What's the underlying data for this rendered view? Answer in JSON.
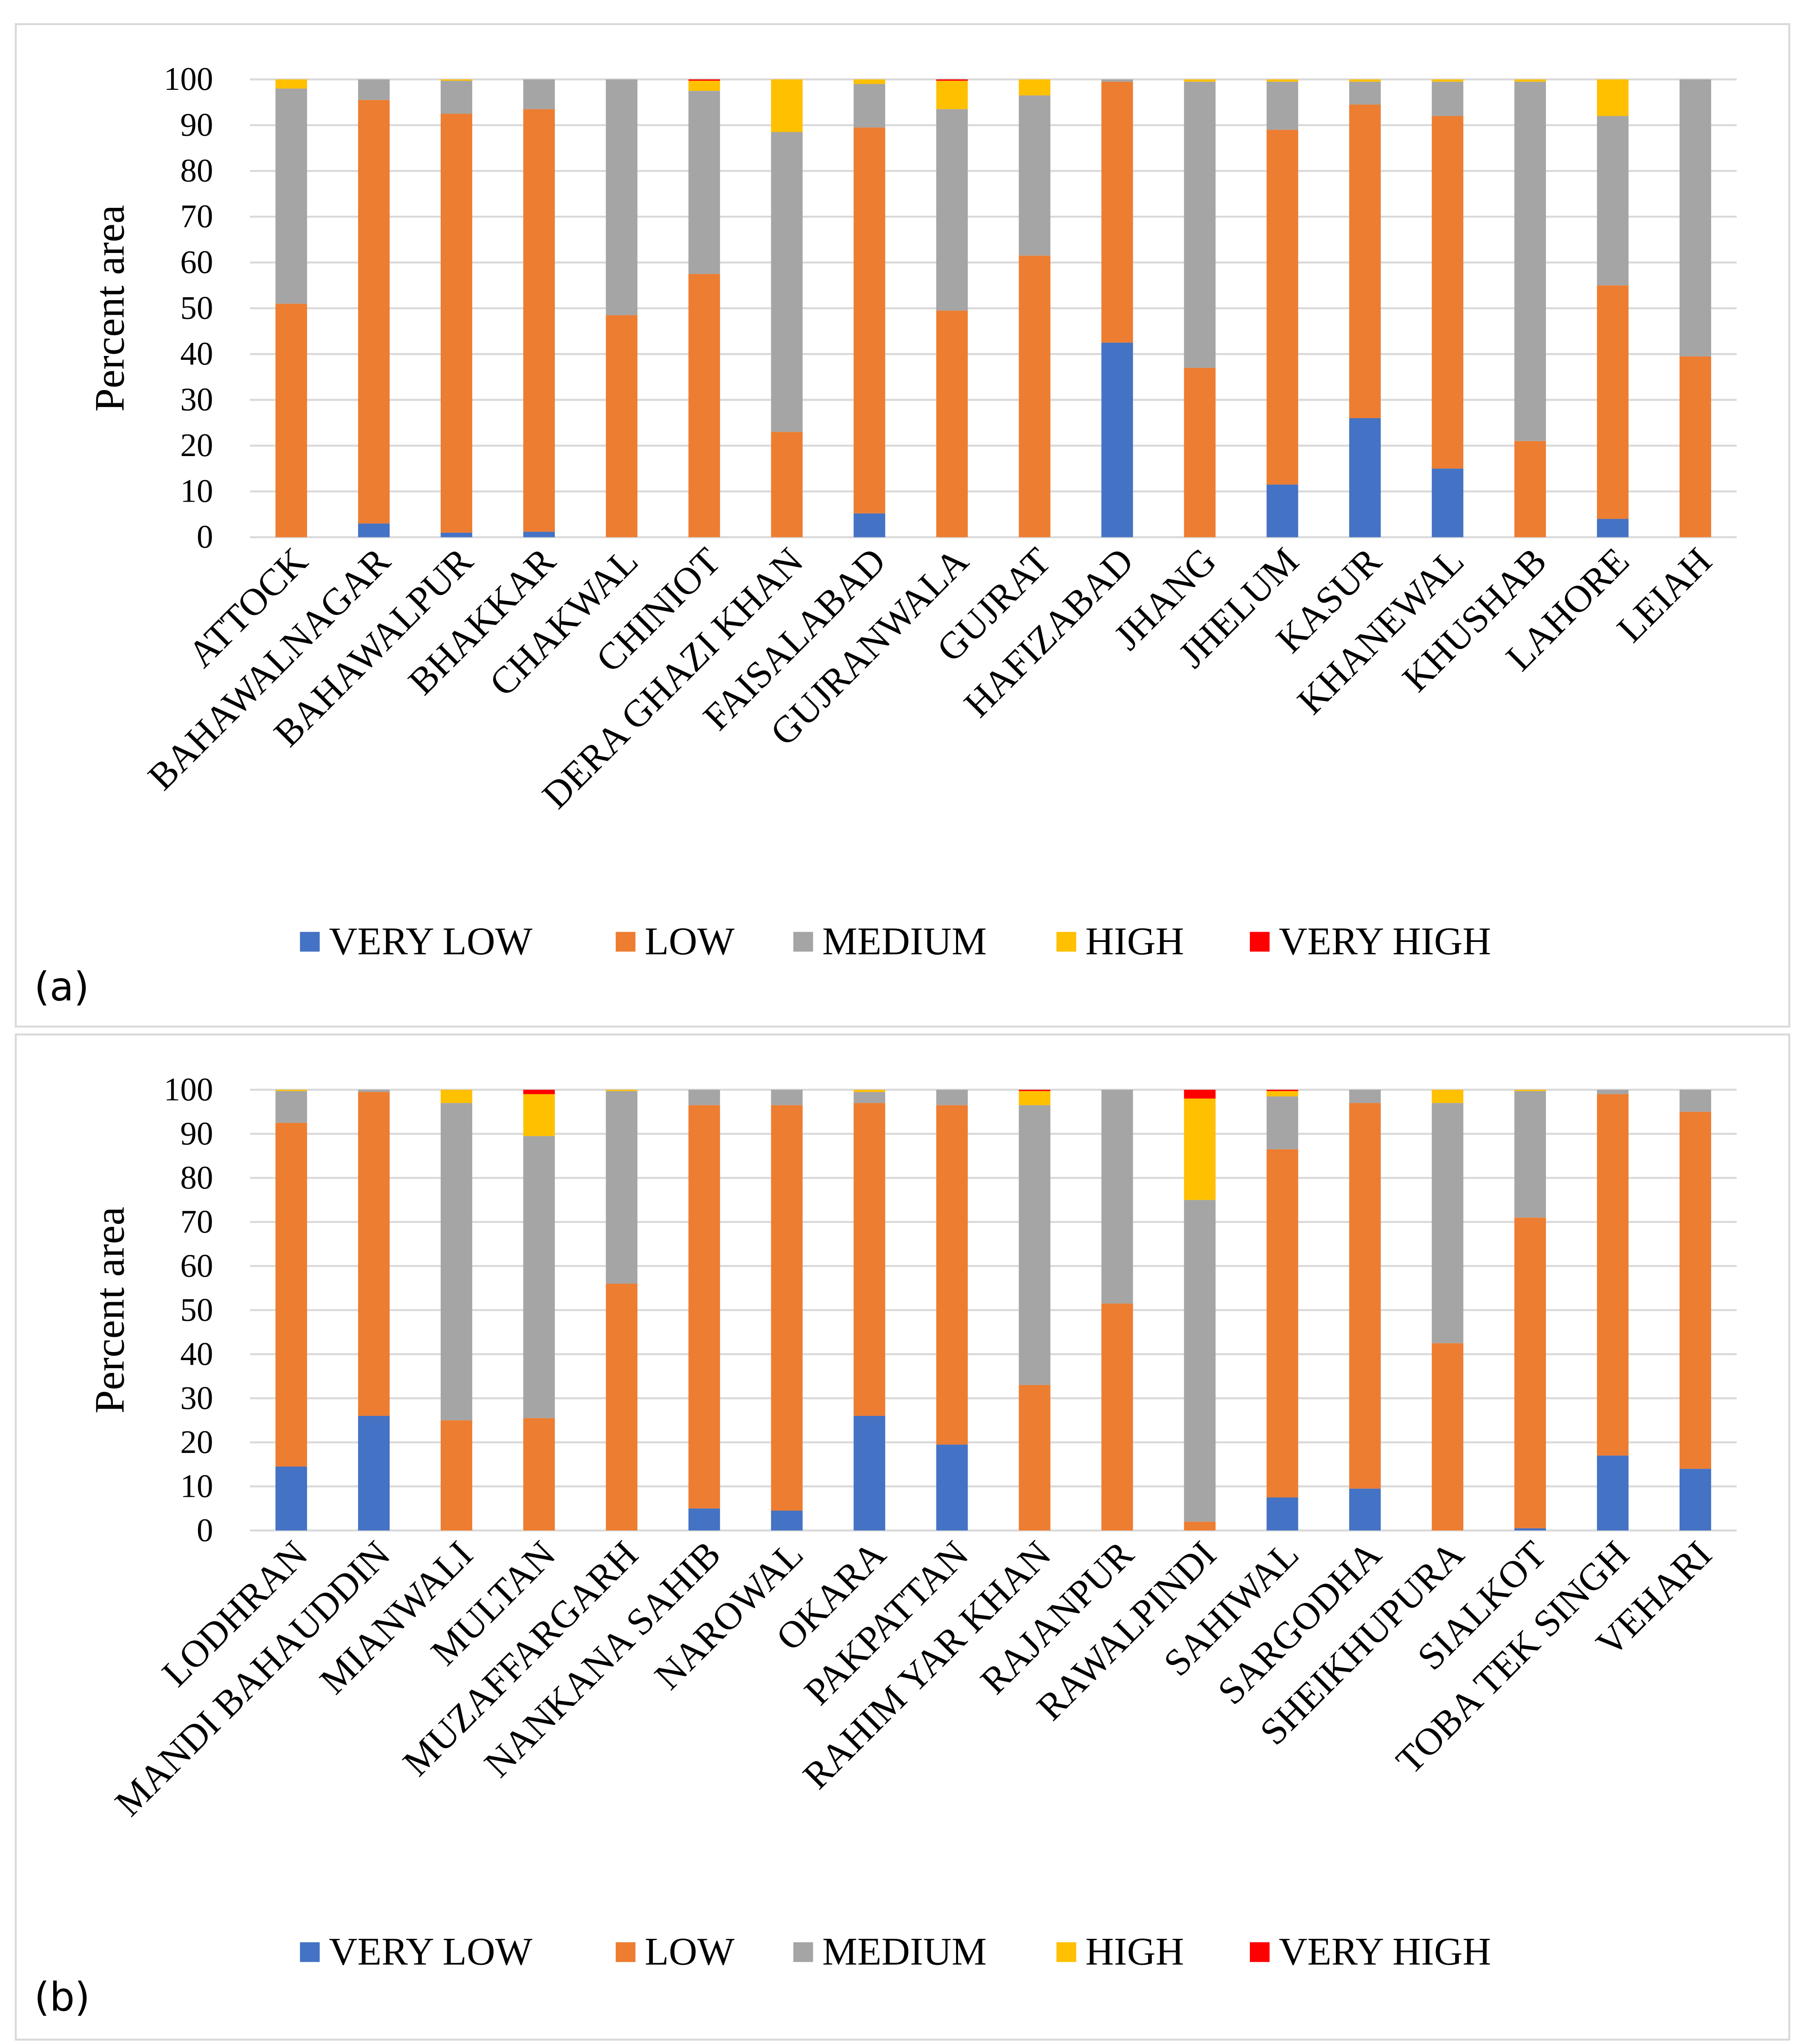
{
  "chart_data": [
    {
      "type": "bar",
      "stacked": true,
      "panel_label": "(a)",
      "title": "",
      "xlabel": "",
      "ylabel": "Percent area",
      "ylim": [
        0,
        100
      ],
      "yticks": [
        0,
        10,
        20,
        30,
        40,
        50,
        60,
        70,
        80,
        90,
        100
      ],
      "grid": true,
      "legend_position": "bottom",
      "categories": [
        "ATTOCK",
        "BAHAWALNAGAR",
        "BAHAWALPUR",
        "BHAKKAR",
        "CHAKWAL",
        "CHINIOT",
        "DERA GHAZI KHAN",
        "FAISALABAD",
        "GUJRANWALA",
        "GUJRAT",
        "HAFIZABAD",
        "JHANG",
        "JHELUM",
        "KASUR",
        "KHANEWAL",
        "KHUSHAB",
        "LAHORE",
        "LEIAH"
      ],
      "series": [
        {
          "name": "VERY LOW",
          "color": "#4472C4",
          "values": [
            0,
            3,
            1,
            1.2,
            0,
            0,
            0,
            5.2,
            0,
            0,
            42.5,
            0,
            11.5,
            26,
            15,
            0,
            4,
            0
          ]
        },
        {
          "name": "LOW",
          "color": "#ED7D31",
          "values": [
            51,
            92.5,
            91.5,
            92.3,
            48.5,
            57.5,
            23,
            84.3,
            49.5,
            61.5,
            57,
            37,
            77.5,
            68.5,
            77,
            21,
            51,
            39.5
          ]
        },
        {
          "name": "MEDIUM",
          "color": "#A5A5A5",
          "values": [
            47,
            4.5,
            7.2,
            6.5,
            51.5,
            40,
            65.5,
            9.5,
            44,
            35,
            0.5,
            62.5,
            10.5,
            5,
            7.5,
            78.5,
            37,
            60.5
          ]
        },
        {
          "name": "HIGH",
          "color": "#FFC000",
          "values": [
            2,
            0,
            0.3,
            0,
            0,
            2.2,
            11.5,
            1,
            6.2,
            3.5,
            0,
            0.5,
            0.5,
            0.5,
            0.5,
            0.5,
            8,
            0
          ]
        },
        {
          "name": "VERY HIGH",
          "color": "#FF0000",
          "values": [
            0,
            0,
            0,
            0,
            0,
            0.3,
            0,
            0,
            0.3,
            0,
            0,
            0,
            0,
            0,
            0,
            0,
            0,
            0
          ]
        }
      ]
    },
    {
      "type": "bar",
      "stacked": true,
      "panel_label": "(b)",
      "title": "",
      "xlabel": "",
      "ylabel": "Percent area",
      "ylim": [
        0,
        100
      ],
      "yticks": [
        0,
        10,
        20,
        30,
        40,
        50,
        60,
        70,
        80,
        90,
        100
      ],
      "grid": true,
      "legend_position": "bottom",
      "categories": [
        "LODHRAN",
        "MANDI BAHAUDDIN",
        "MIANWALI",
        "MULTAN",
        "MUZAFFARGARH",
        "NANKANA SAHIB",
        "NAROWAL",
        "OKARA",
        "PAKPATTAN",
        "RAHIM YAR KHAN",
        "RAJANPUR",
        "RAWALPINDI",
        "SAHIWAL",
        "SARGODHA",
        "SHEIKHUPURA",
        "SIALKOT",
        "TOBA TEK SINGH",
        "VEHARI"
      ],
      "series": [
        {
          "name": "VERY LOW",
          "color": "#4472C4",
          "values": [
            14.5,
            26,
            0,
            0,
            0,
            5,
            4.5,
            26,
            19.5,
            0,
            0,
            0,
            7.5,
            9.5,
            0,
            0.5,
            17,
            14
          ]
        },
        {
          "name": "LOW",
          "color": "#ED7D31",
          "values": [
            78,
            73.5,
            25,
            25.5,
            56,
            91.5,
            92,
            71,
            77,
            33,
            51.5,
            2,
            79,
            87.5,
            42.5,
            70.5,
            82,
            81
          ]
        },
        {
          "name": "MEDIUM",
          "color": "#A5A5A5",
          "values": [
            7.2,
            0.5,
            72,
            64,
            43.7,
            3.5,
            3.5,
            2.5,
            3.5,
            63.5,
            48.5,
            73,
            12,
            3,
            54.5,
            28.7,
            1,
            5
          ]
        },
        {
          "name": "HIGH",
          "color": "#FFC000",
          "values": [
            0.3,
            0,
            3,
            9.5,
            0.3,
            0,
            0,
            0.5,
            0,
            3.2,
            0,
            23,
            1.2,
            0,
            3,
            0.3,
            0,
            0
          ]
        },
        {
          "name": "VERY HIGH",
          "color": "#FF0000",
          "values": [
            0,
            0,
            0,
            1,
            0,
            0,
            0,
            0,
            0,
            0.3,
            0,
            2,
            0.3,
            0,
            0,
            0,
            0,
            0
          ]
        }
      ]
    }
  ]
}
